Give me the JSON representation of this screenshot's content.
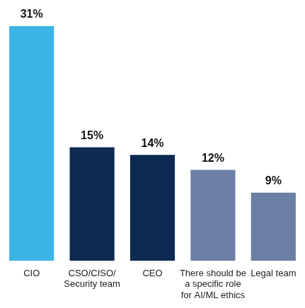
{
  "chart_data": {
    "type": "bar",
    "categories": [
      "CIO",
      "CSO/CISO/ Security team",
      "CEO",
      "There should be a specific role for AI/ML ethics",
      "Legal team"
    ],
    "values": [
      31,
      15,
      14,
      12,
      9
    ],
    "value_labels": [
      "31%",
      "15%",
      "14%",
      "12%",
      "9%"
    ],
    "colors": [
      "#3db4e6",
      "#0d2a52",
      "#0d2a52",
      "#6b7ea3",
      "#6b7ea3"
    ],
    "ylim": [
      0,
      31
    ],
    "grid": false,
    "data_labels": true,
    "tick_labels": "x"
  }
}
